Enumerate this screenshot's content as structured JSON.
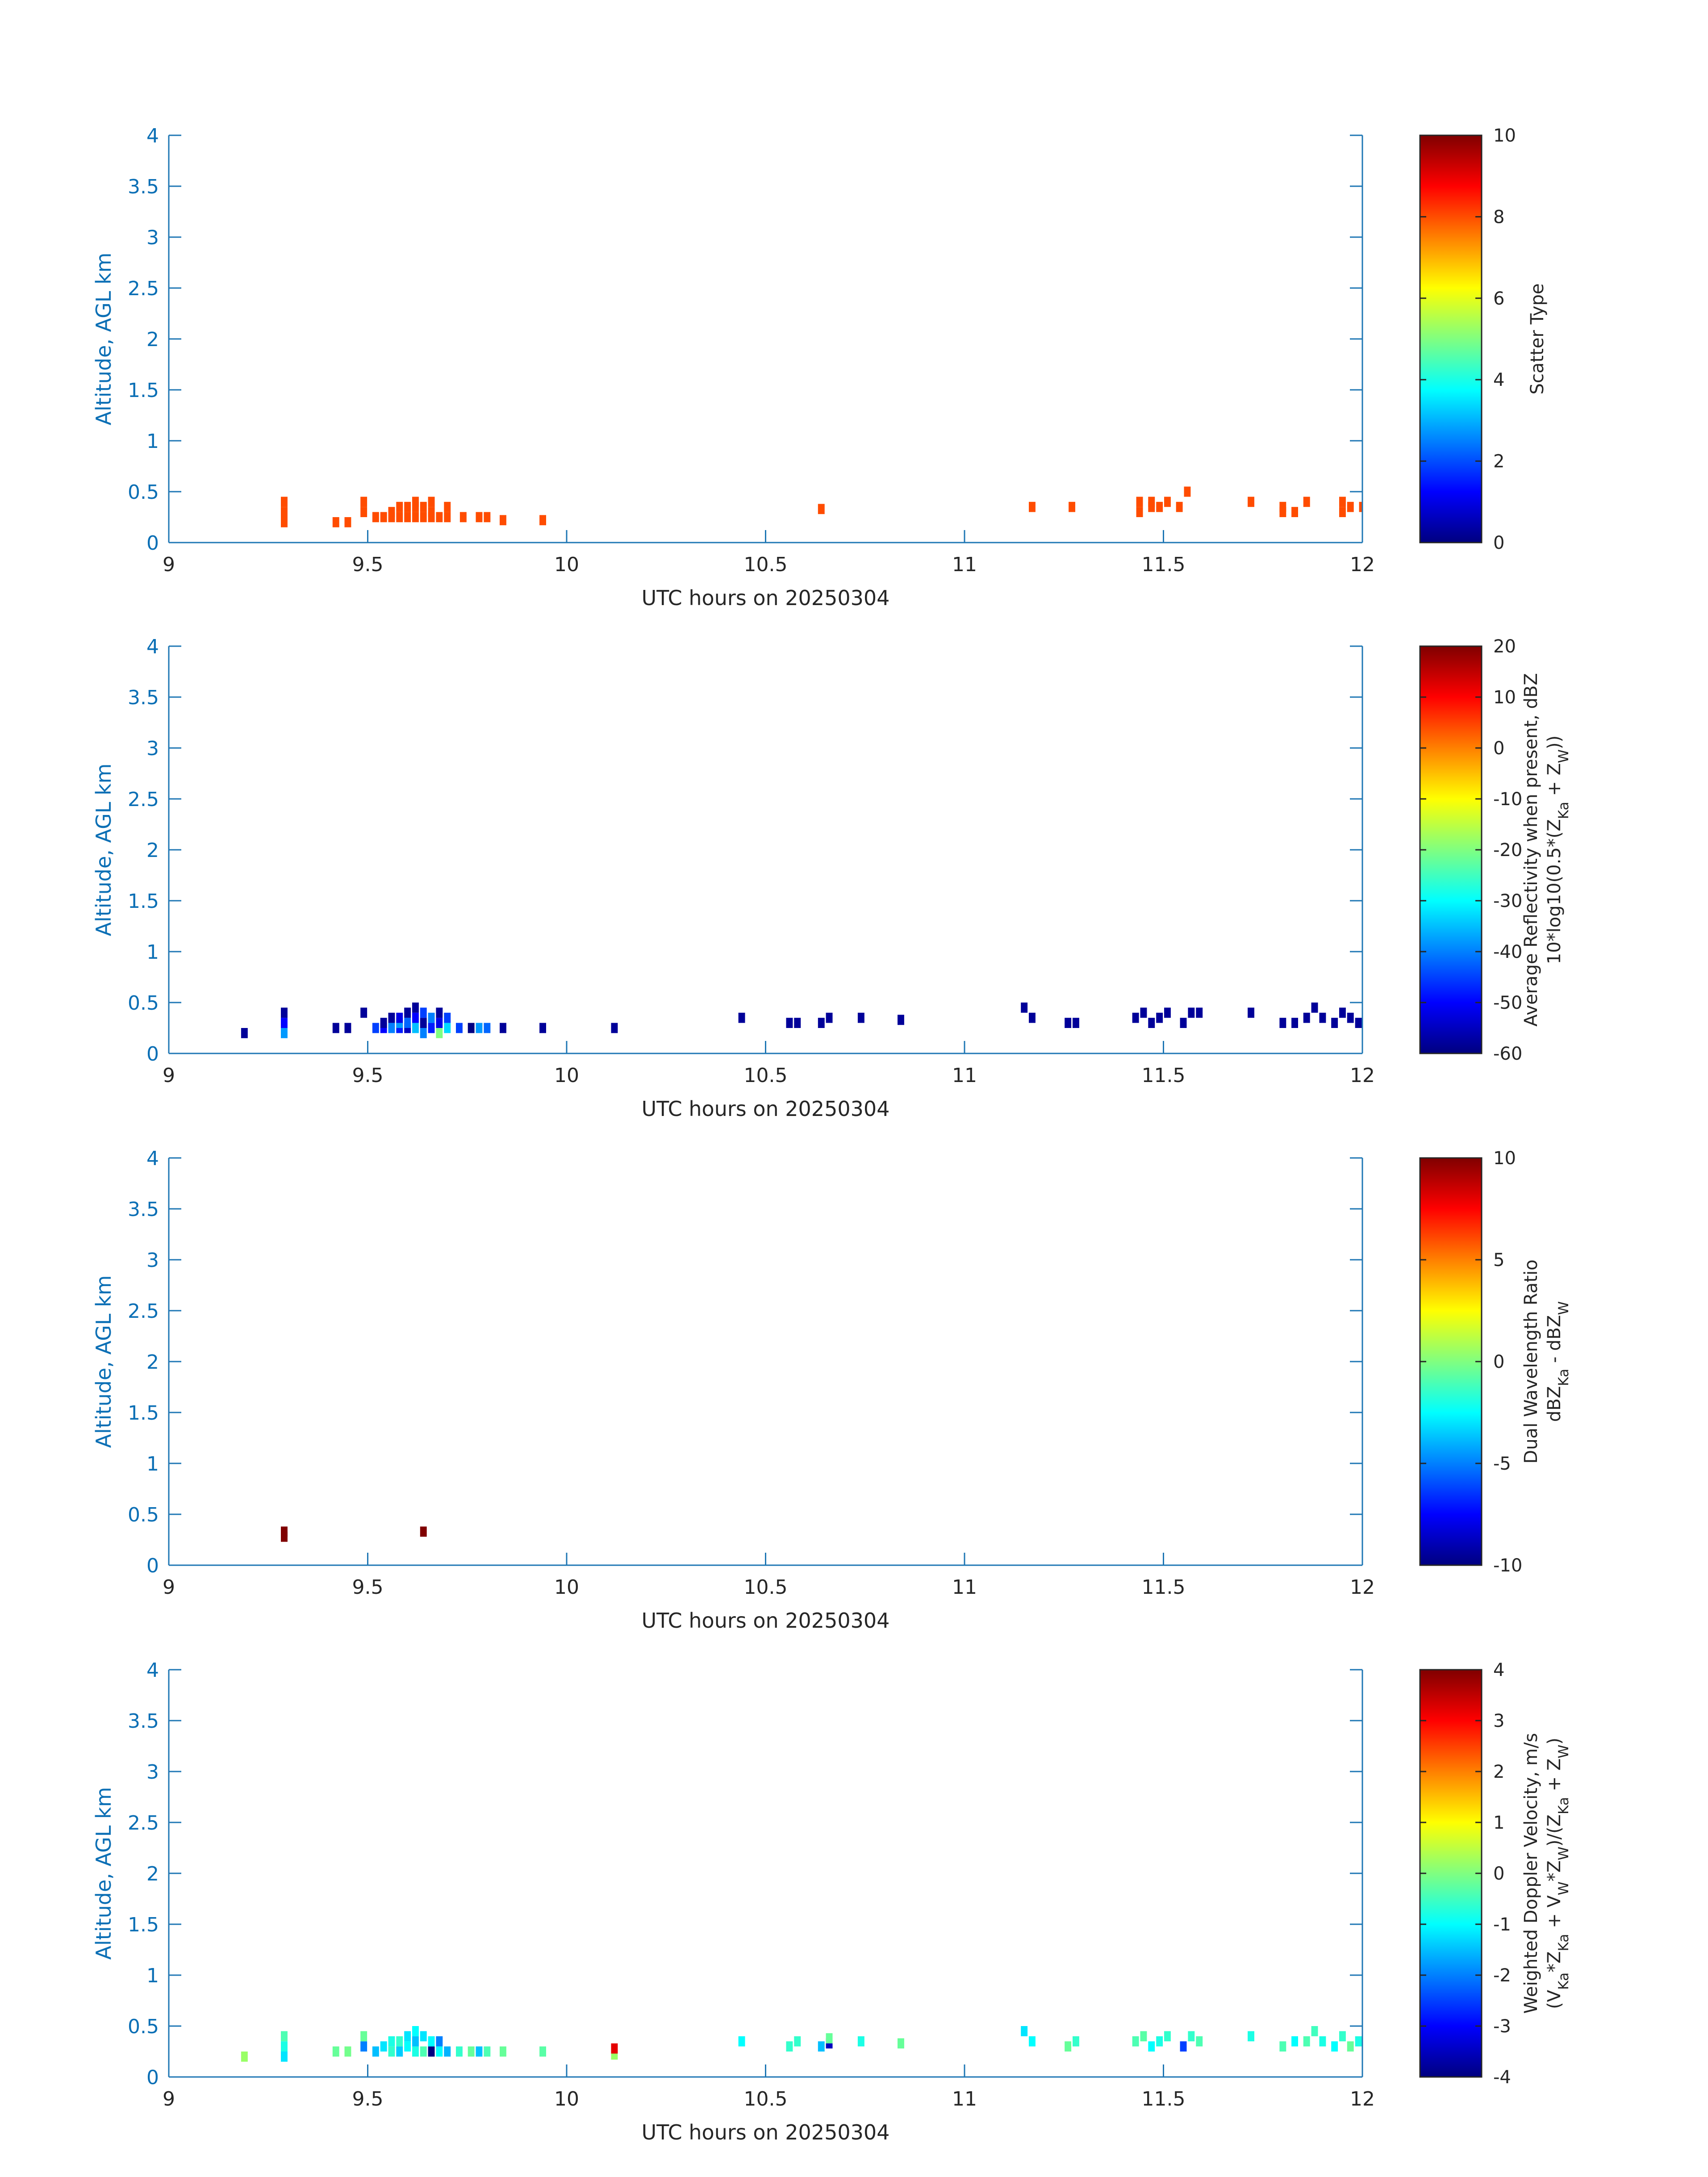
{
  "colors": {
    "axis": "#1f77b4",
    "axis_text": "#0b6fb5",
    "text": "#262626",
    "cbar_frame": "#262626"
  },
  "chart_data": [
    {
      "type": "heatmap",
      "xlabel": "UTC hours on 20250304",
      "ylabel": "Altitude, AGL km",
      "xlim": [
        9,
        12
      ],
      "ylim": [
        0,
        4
      ],
      "xticks": [
        "9",
        "9.5",
        "10",
        "10.5",
        "11",
        "11.5",
        "12"
      ],
      "yticks": [
        "0",
        "0.5",
        "1",
        "1.5",
        "2",
        "2.5",
        "3",
        "3.5",
        "4"
      ],
      "colorbar": {
        "label_lines": [
          "Scatter Type"
        ],
        "ticks": [
          "0",
          "2",
          "4",
          "6",
          "8",
          "10"
        ],
        "clim": [
          0,
          10
        ]
      },
      "cell_size": {
        "dx": 0.0167,
        "dy": 0.1
      },
      "cells": [
        [
          9.29,
          0.2,
          8
        ],
        [
          9.29,
          0.3,
          8
        ],
        [
          9.29,
          0.4,
          8
        ],
        [
          9.42,
          0.2,
          8
        ],
        [
          9.45,
          0.2,
          8
        ],
        [
          9.49,
          0.3,
          8
        ],
        [
          9.49,
          0.4,
          8
        ],
        [
          9.52,
          0.25,
          8
        ],
        [
          9.54,
          0.25,
          8
        ],
        [
          9.56,
          0.25,
          8
        ],
        [
          9.56,
          0.3,
          8
        ],
        [
          9.58,
          0.25,
          8
        ],
        [
          9.58,
          0.35,
          8
        ],
        [
          9.6,
          0.25,
          8
        ],
        [
          9.6,
          0.35,
          8
        ],
        [
          9.62,
          0.25,
          8
        ],
        [
          9.62,
          0.35,
          8
        ],
        [
          9.62,
          0.4,
          8
        ],
        [
          9.64,
          0.25,
          8
        ],
        [
          9.64,
          0.35,
          8
        ],
        [
          9.66,
          0.25,
          8
        ],
        [
          9.66,
          0.3,
          8
        ],
        [
          9.66,
          0.4,
          8
        ],
        [
          9.68,
          0.25,
          8
        ],
        [
          9.7,
          0.25,
          8
        ],
        [
          9.7,
          0.35,
          8
        ],
        [
          9.74,
          0.25,
          8
        ],
        [
          9.78,
          0.25,
          8
        ],
        [
          9.8,
          0.25,
          8
        ],
        [
          9.84,
          0.22,
          8
        ],
        [
          9.94,
          0.22,
          8
        ],
        [
          10.64,
          0.33,
          8
        ],
        [
          11.17,
          0.35,
          8
        ],
        [
          11.27,
          0.35,
          8
        ],
        [
          11.44,
          0.3,
          8
        ],
        [
          11.44,
          0.4,
          8
        ],
        [
          11.47,
          0.35,
          8
        ],
        [
          11.47,
          0.4,
          8
        ],
        [
          11.49,
          0.35,
          8
        ],
        [
          11.51,
          0.4,
          8
        ],
        [
          11.54,
          0.35,
          8
        ],
        [
          11.56,
          0.5,
          8
        ],
        [
          11.72,
          0.4,
          8
        ],
        [
          11.8,
          0.3,
          8
        ],
        [
          11.8,
          0.35,
          8
        ],
        [
          11.83,
          0.3,
          8
        ],
        [
          11.86,
          0.4,
          8
        ],
        [
          11.95,
          0.3,
          8
        ],
        [
          11.95,
          0.4,
          8
        ],
        [
          11.97,
          0.35,
          8
        ],
        [
          12.0,
          0.35,
          8
        ]
      ]
    },
    {
      "type": "heatmap",
      "xlabel": "UTC hours on 20250304",
      "ylabel": "Altitude, AGL km",
      "xlim": [
        9,
        12
      ],
      "ylim": [
        0,
        4
      ],
      "xticks": [
        "9",
        "9.5",
        "10",
        "10.5",
        "11",
        "11.5",
        "12"
      ],
      "yticks": [
        "0",
        "0.5",
        "1",
        "1.5",
        "2",
        "2.5",
        "3",
        "3.5",
        "4"
      ],
      "colorbar": {
        "label_lines": [
          "Average Reflectivity when present, dBZ",
          "10*log10(0.5*(Z_Ka + Z_W))"
        ],
        "ticks": [
          "-60",
          "-50",
          "-40",
          "-30",
          "-20",
          "-10",
          "0",
          "10",
          "20"
        ],
        "clim": [
          -60,
          20
        ]
      },
      "cell_size": {
        "dx": 0.0167,
        "dy": 0.1
      },
      "cells": [
        [
          9.19,
          0.2,
          -58
        ],
        [
          9.29,
          0.2,
          -38
        ],
        [
          9.29,
          0.3,
          -50
        ],
        [
          9.29,
          0.4,
          -58
        ],
        [
          9.42,
          0.25,
          -58
        ],
        [
          9.45,
          0.25,
          -58
        ],
        [
          9.49,
          0.4,
          -58
        ],
        [
          9.52,
          0.25,
          -45
        ],
        [
          9.54,
          0.25,
          -50
        ],
        [
          9.54,
          0.3,
          -58
        ],
        [
          9.56,
          0.25,
          -40
        ],
        [
          9.56,
          0.35,
          -58
        ],
        [
          9.58,
          0.25,
          -48
        ],
        [
          9.58,
          0.3,
          -38
        ],
        [
          9.58,
          0.35,
          -52
        ],
        [
          9.6,
          0.25,
          -55
        ],
        [
          9.6,
          0.3,
          -42
        ],
        [
          9.6,
          0.4,
          -58
        ],
        [
          9.62,
          0.25,
          -35
        ],
        [
          9.62,
          0.35,
          -50
        ],
        [
          9.62,
          0.45,
          -58
        ],
        [
          9.64,
          0.2,
          -40
        ],
        [
          9.64,
          0.3,
          -58
        ],
        [
          9.64,
          0.4,
          -45
        ],
        [
          9.66,
          0.25,
          -48
        ],
        [
          9.66,
          0.35,
          -40
        ],
        [
          9.68,
          0.2,
          -20
        ],
        [
          9.68,
          0.3,
          -52
        ],
        [
          9.68,
          0.4,
          -58
        ],
        [
          9.7,
          0.25,
          -33
        ],
        [
          9.7,
          0.35,
          -45
        ],
        [
          9.73,
          0.25,
          -45
        ],
        [
          9.76,
          0.25,
          -60
        ],
        [
          9.78,
          0.25,
          -38
        ],
        [
          9.8,
          0.25,
          -42
        ],
        [
          9.84,
          0.25,
          -58
        ],
        [
          9.94,
          0.25,
          -58
        ],
        [
          10.12,
          0.25,
          -58
        ],
        [
          10.44,
          0.35,
          -58
        ],
        [
          10.56,
          0.3,
          -58
        ],
        [
          10.58,
          0.3,
          -58
        ],
        [
          10.64,
          0.3,
          -58
        ],
        [
          10.66,
          0.35,
          -58
        ],
        [
          10.74,
          0.35,
          -58
        ],
        [
          10.84,
          0.33,
          -58
        ],
        [
          11.15,
          0.45,
          -58
        ],
        [
          11.17,
          0.35,
          -58
        ],
        [
          11.26,
          0.3,
          -58
        ],
        [
          11.28,
          0.3,
          -58
        ],
        [
          11.43,
          0.35,
          -58
        ],
        [
          11.45,
          0.4,
          -58
        ],
        [
          11.47,
          0.3,
          -58
        ],
        [
          11.49,
          0.35,
          -58
        ],
        [
          11.51,
          0.4,
          -58
        ],
        [
          11.55,
          0.3,
          -58
        ],
        [
          11.57,
          0.4,
          -58
        ],
        [
          11.59,
          0.4,
          -58
        ],
        [
          11.72,
          0.4,
          -58
        ],
        [
          11.8,
          0.3,
          -58
        ],
        [
          11.83,
          0.3,
          -58
        ],
        [
          11.86,
          0.35,
          -58
        ],
        [
          11.88,
          0.45,
          -58
        ],
        [
          11.9,
          0.35,
          -58
        ],
        [
          11.93,
          0.3,
          -58
        ],
        [
          11.95,
          0.4,
          -58
        ],
        [
          11.97,
          0.35,
          -58
        ],
        [
          11.99,
          0.3,
          -58
        ]
      ]
    },
    {
      "type": "heatmap",
      "xlabel": "UTC hours on 20250304",
      "ylabel": "Altitude, AGL km",
      "xlim": [
        9,
        12
      ],
      "ylim": [
        0,
        4
      ],
      "xticks": [
        "9",
        "9.5",
        "10",
        "10.5",
        "11",
        "11.5",
        "12"
      ],
      "yticks": [
        "0",
        "0.5",
        "1",
        "1.5",
        "2",
        "2.5",
        "3",
        "3.5",
        "4"
      ],
      "colorbar": {
        "label_lines": [
          "Dual Wavelength Ratio",
          "dBZ_Ka - dBZ_W"
        ],
        "ticks": [
          "-10",
          "-5",
          "0",
          "5",
          "10"
        ],
        "clim": [
          -10,
          10
        ]
      },
      "cell_size": {
        "dx": 0.0167,
        "dy": 0.1
      },
      "cells": [
        [
          9.29,
          0.28,
          10
        ],
        [
          9.29,
          0.33,
          10
        ],
        [
          9.64,
          0.33,
          10
        ]
      ]
    },
    {
      "type": "heatmap",
      "xlabel": "UTC hours on 20250304",
      "ylabel": "Altitude, AGL km",
      "xlim": [
        9,
        12
      ],
      "ylim": [
        0,
        4
      ],
      "xticks": [
        "9",
        "9.5",
        "10",
        "10.5",
        "11",
        "11.5",
        "12"
      ],
      "yticks": [
        "0",
        "0.5",
        "1",
        "1.5",
        "2",
        "2.5",
        "3",
        "3.5",
        "4"
      ],
      "colorbar": {
        "label_lines": [
          "Weighted Doppler Velocity, m/s",
          "(V_Ka*Z_Ka + V_W*Z_W)/(Z_Ka + Z_W)"
        ],
        "ticks": [
          "-4",
          "-3",
          "-2",
          "-1",
          "0",
          "1",
          "2",
          "3",
          "4"
        ],
        "clim": [
          -4,
          4
        ]
      },
      "cell_size": {
        "dx": 0.0167,
        "dy": 0.1
      },
      "cells": [
        [
          9.19,
          0.2,
          0.2
        ],
        [
          9.29,
          0.2,
          -1.2
        ],
        [
          9.29,
          0.3,
          -0.8
        ],
        [
          9.29,
          0.4,
          -0.4
        ],
        [
          9.42,
          0.25,
          -0.2
        ],
        [
          9.45,
          0.25,
          -0.1
        ],
        [
          9.49,
          0.3,
          -2.0
        ],
        [
          9.49,
          0.4,
          -0.2
        ],
        [
          9.52,
          0.25,
          -1.5
        ],
        [
          9.54,
          0.3,
          -1.2
        ],
        [
          9.56,
          0.25,
          -0.6
        ],
        [
          9.56,
          0.35,
          -0.8
        ],
        [
          9.58,
          0.25,
          -1.4
        ],
        [
          9.58,
          0.35,
          -0.6
        ],
        [
          9.6,
          0.3,
          -1.0
        ],
        [
          9.6,
          0.4,
          -1.2
        ],
        [
          9.62,
          0.25,
          -0.8
        ],
        [
          9.62,
          0.35,
          -1.5
        ],
        [
          9.62,
          0.45,
          -1.0
        ],
        [
          9.64,
          0.25,
          -0.4
        ],
        [
          9.64,
          0.4,
          -1.2
        ],
        [
          9.66,
          0.25,
          -4.0
        ],
        [
          9.66,
          0.35,
          -1.0
        ],
        [
          9.68,
          0.25,
          -1.0
        ],
        [
          9.68,
          0.35,
          -2.0
        ],
        [
          9.7,
          0.25,
          -1.6
        ],
        [
          9.73,
          0.25,
          -0.6
        ],
        [
          9.76,
          0.25,
          -0.2
        ],
        [
          9.78,
          0.25,
          -1.5
        ],
        [
          9.8,
          0.25,
          -0.4
        ],
        [
          9.84,
          0.25,
          -0.2
        ],
        [
          9.94,
          0.25,
          -0.3
        ],
        [
          10.12,
          0.22,
          0.2
        ],
        [
          10.12,
          0.28,
          3.2
        ],
        [
          10.44,
          0.35,
          -1.0
        ],
        [
          10.56,
          0.3,
          -0.6
        ],
        [
          10.58,
          0.35,
          -0.6
        ],
        [
          10.64,
          0.3,
          -1.5
        ],
        [
          10.66,
          0.33,
          -3.5
        ],
        [
          10.66,
          0.38,
          -0.2
        ],
        [
          10.74,
          0.35,
          -0.8
        ],
        [
          10.84,
          0.33,
          -0.2
        ],
        [
          11.15,
          0.45,
          -1.2
        ],
        [
          11.17,
          0.35,
          -1.0
        ],
        [
          11.26,
          0.3,
          -0.2
        ],
        [
          11.28,
          0.35,
          -0.6
        ],
        [
          11.43,
          0.35,
          -0.4
        ],
        [
          11.45,
          0.4,
          -0.3
        ],
        [
          11.47,
          0.3,
          -1.0
        ],
        [
          11.49,
          0.35,
          -0.8
        ],
        [
          11.51,
          0.4,
          -0.6
        ],
        [
          11.55,
          0.3,
          -2.5
        ],
        [
          11.57,
          0.4,
          -0.6
        ],
        [
          11.59,
          0.35,
          -0.4
        ],
        [
          11.72,
          0.4,
          -0.8
        ],
        [
          11.8,
          0.3,
          -0.4
        ],
        [
          11.83,
          0.35,
          -1.0
        ],
        [
          11.86,
          0.35,
          -0.4
        ],
        [
          11.88,
          0.45,
          -0.5
        ],
        [
          11.9,
          0.35,
          -0.8
        ],
        [
          11.93,
          0.3,
          -1.0
        ],
        [
          11.95,
          0.4,
          -0.6
        ],
        [
          11.97,
          0.3,
          -0.2
        ],
        [
          11.99,
          0.35,
          -0.8
        ]
      ]
    }
  ]
}
